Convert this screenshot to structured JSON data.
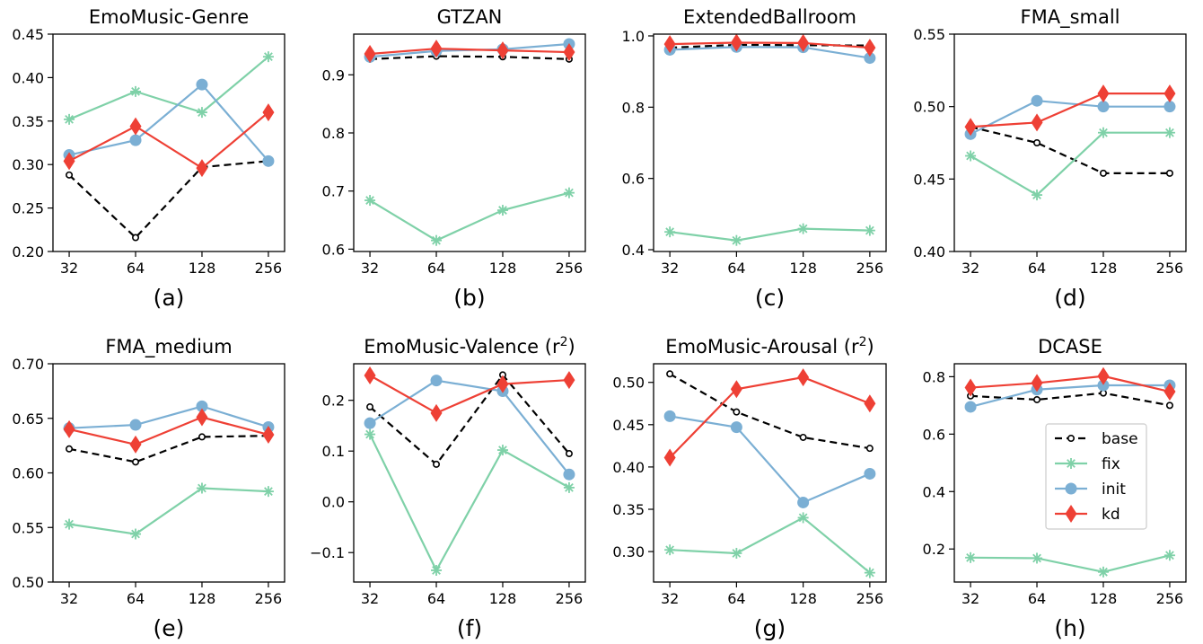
{
  "chart_data": [
    {
      "type": "line",
      "panel_label": "(a)",
      "title": "EmoMusic-Genre",
      "categories": [
        "32",
        "64",
        "128",
        "256"
      ],
      "ylim": [
        0.2,
        0.45
      ],
      "yticks": [
        "0.20",
        "0.25",
        "0.30",
        "0.35",
        "0.40",
        "0.45"
      ],
      "series": [
        {
          "name": "base",
          "values": [
            0.288,
            0.216,
            0.297,
            0.304
          ]
        },
        {
          "name": "fix",
          "values": [
            0.352,
            0.384,
            0.36,
            0.424
          ]
        },
        {
          "name": "init",
          "values": [
            0.311,
            0.328,
            0.392,
            0.304
          ]
        },
        {
          "name": "kd",
          "values": [
            0.304,
            0.344,
            0.296,
            0.36
          ]
        }
      ]
    },
    {
      "type": "line",
      "panel_label": "(b)",
      "title": "GTZAN",
      "categories": [
        "32",
        "64",
        "128",
        "256"
      ],
      "ylim": [
        0.596,
        0.97
      ],
      "yticks": [
        "0.6",
        "0.7",
        "0.8",
        "0.9"
      ],
      "series": [
        {
          "name": "base",
          "values": [
            0.927,
            0.932,
            0.931,
            0.927
          ]
        },
        {
          "name": "fix",
          "values": [
            0.684,
            0.615,
            0.667,
            0.697
          ]
        },
        {
          "name": "init",
          "values": [
            0.931,
            0.941,
            0.944,
            0.953
          ]
        },
        {
          "name": "kd",
          "values": [
            0.936,
            0.945,
            0.942,
            0.939
          ]
        }
      ]
    },
    {
      "type": "line",
      "panel_label": "(c)",
      "title": "ExtendedBallroom",
      "categories": [
        "32",
        "64",
        "128",
        "256"
      ],
      "ylim": [
        0.395,
        1.005
      ],
      "yticks": [
        "0.4",
        "0.6",
        "0.8",
        "1.0"
      ],
      "series": [
        {
          "name": "base",
          "values": [
            0.967,
            0.975,
            0.974,
            0.973
          ]
        },
        {
          "name": "fix",
          "values": [
            0.45,
            0.426,
            0.459,
            0.454
          ]
        },
        {
          "name": "init",
          "values": [
            0.961,
            0.969,
            0.968,
            0.938
          ]
        },
        {
          "name": "kd",
          "values": [
            0.977,
            0.981,
            0.98,
            0.967
          ]
        }
      ]
    },
    {
      "type": "line",
      "panel_label": "(d)",
      "title": "FMA_small",
      "categories": [
        "32",
        "64",
        "128",
        "256"
      ],
      "ylim": [
        0.4,
        0.55
      ],
      "yticks": [
        "0.40",
        "0.45",
        "0.50",
        "0.55"
      ],
      "series": [
        {
          "name": "base",
          "values": [
            0.486,
            0.475,
            0.454,
            0.454
          ]
        },
        {
          "name": "fix",
          "values": [
            0.466,
            0.439,
            0.482,
            0.482
          ]
        },
        {
          "name": "init",
          "values": [
            0.481,
            0.504,
            0.5,
            0.5
          ]
        },
        {
          "name": "kd",
          "values": [
            0.486,
            0.489,
            0.509,
            0.509
          ]
        }
      ]
    },
    {
      "type": "line",
      "panel_label": "(e)",
      "title": "FMA_medium",
      "categories": [
        "32",
        "64",
        "128",
        "256"
      ],
      "ylim": [
        0.5,
        0.7
      ],
      "yticks": [
        "0.50",
        "0.55",
        "0.60",
        "0.65",
        "0.70"
      ],
      "series": [
        {
          "name": "base",
          "values": [
            0.622,
            0.61,
            0.633,
            0.634
          ]
        },
        {
          "name": "fix",
          "values": [
            0.553,
            0.544,
            0.586,
            0.583
          ]
        },
        {
          "name": "init",
          "values": [
            0.641,
            0.644,
            0.661,
            0.642
          ]
        },
        {
          "name": "kd",
          "values": [
            0.64,
            0.626,
            0.651,
            0.635
          ]
        }
      ]
    },
    {
      "type": "line",
      "panel_label": "(f)",
      "title": "EmoMusic-Valence (r²)",
      "categories": [
        "32",
        "64",
        "128",
        "256"
      ],
      "ylim": [
        -0.158,
        0.272
      ],
      "yticks": [
        "−0.1",
        "0.0",
        "0.1",
        "0.2"
      ],
      "series": [
        {
          "name": "base",
          "values": [
            0.187,
            0.074,
            0.25,
            0.095
          ]
        },
        {
          "name": "fix",
          "values": [
            0.133,
            -0.135,
            0.102,
            0.028
          ]
        },
        {
          "name": "init",
          "values": [
            0.155,
            0.239,
            0.218,
            0.054
          ]
        },
        {
          "name": "kd",
          "values": [
            0.249,
            0.175,
            0.232,
            0.24
          ]
        }
      ]
    },
    {
      "type": "line",
      "panel_label": "(g)",
      "title": "EmoMusic-Arousal (r²)",
      "categories": [
        "32",
        "64",
        "128",
        "256"
      ],
      "ylim": [
        0.264,
        0.522
      ],
      "yticks": [
        "0.30",
        "0.35",
        "0.40",
        "0.45",
        "0.50"
      ],
      "series": [
        {
          "name": "base",
          "values": [
            0.51,
            0.465,
            0.435,
            0.422
          ]
        },
        {
          "name": "fix",
          "values": [
            0.302,
            0.298,
            0.34,
            0.275
          ]
        },
        {
          "name": "init",
          "values": [
            0.46,
            0.447,
            0.358,
            0.392
          ]
        },
        {
          "name": "kd",
          "values": [
            0.411,
            0.492,
            0.506,
            0.475
          ]
        }
      ]
    },
    {
      "type": "line",
      "panel_label": "(h)",
      "title": "DCASE",
      "categories": [
        "32",
        "64",
        "128",
        "256"
      ],
      "ylim": [
        0.085,
        0.845
      ],
      "yticks": [
        "0.2",
        "0.4",
        "0.6",
        "0.8"
      ],
      "series": [
        {
          "name": "base",
          "values": [
            0.733,
            0.72,
            0.743,
            0.7
          ]
        },
        {
          "name": "fix",
          "values": [
            0.17,
            0.168,
            0.12,
            0.178
          ]
        },
        {
          "name": "init",
          "values": [
            0.695,
            0.755,
            0.77,
            0.77
          ]
        },
        {
          "name": "kd",
          "values": [
            0.762,
            0.778,
            0.802,
            0.748
          ]
        }
      ]
    }
  ],
  "legend": {
    "placement": "inside panel (h), lower right",
    "entries": [
      {
        "name": "base",
        "color": "#000000",
        "style": "dashed",
        "marker": "hollow-circle"
      },
      {
        "name": "fix",
        "color": "#7fd1a8",
        "style": "solid",
        "marker": "asterisk"
      },
      {
        "name": "init",
        "color": "#7bafd4",
        "style": "solid",
        "marker": "circle"
      },
      {
        "name": "kd",
        "color": "#ee4035",
        "style": "solid",
        "marker": "diamond"
      }
    ]
  },
  "colors": {
    "base": "#000000",
    "fix": "#7fd1a8",
    "init": "#7bafd4",
    "kd": "#ee4035"
  }
}
